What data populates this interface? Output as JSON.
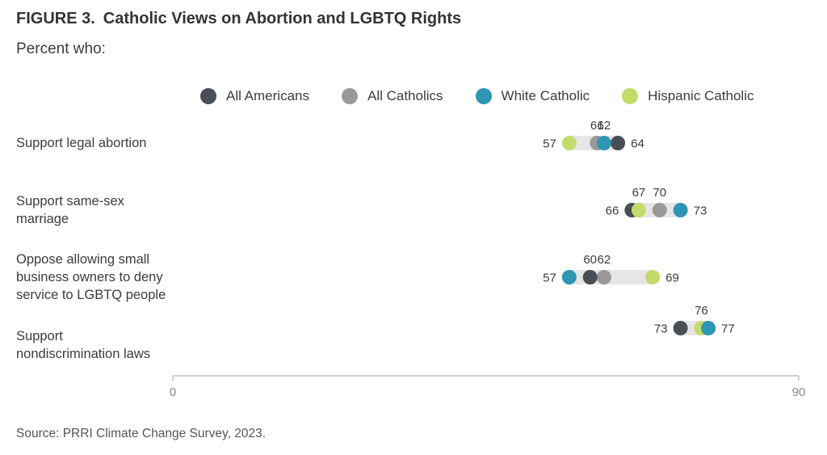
{
  "figure_label": "FIGURE 3.",
  "chart_data": {
    "type": "scatter",
    "title": "Catholic Views on Abortion and LGBTQ Rights",
    "subtitle": "Percent who:",
    "source": "Source: PRRI Climate Change Survey, 2023.",
    "xlim": [
      0,
      90
    ],
    "x_ticks": [
      "0",
      "90"
    ],
    "categories": [
      [
        "Support legal abortion"
      ],
      [
        "Support same-sex",
        "marriage"
      ],
      [
        "Oppose allowing small",
        "business owners to deny",
        "service to LGBTQ people"
      ],
      [
        "Support",
        "nondiscrimination laws"
      ]
    ],
    "series": [
      {
        "name": "All Americans",
        "color": "#4a4f55",
        "values": [
          64,
          66,
          60,
          73
        ]
      },
      {
        "name": "All Catholics",
        "color": "#999999",
        "values": [
          61,
          70,
          62,
          76
        ]
      },
      {
        "name": "White Catholic",
        "color": "#2e95b3",
        "values": [
          62,
          73,
          57,
          77
        ]
      },
      {
        "name": "Hispanic Catholic",
        "color": "#c3db6a",
        "values": [
          57,
          67,
          69,
          76
        ]
      }
    ],
    "point_labels": [
      {
        "above": [
          61,
          62
        ],
        "left": 57,
        "right": 64
      },
      {
        "above": [
          67,
          70
        ],
        "left": 66,
        "right": 73
      },
      {
        "above": [
          60,
          62
        ],
        "left": 57,
        "right": 69
      },
      {
        "above": [
          76
        ],
        "left": 73,
        "right": 77
      }
    ],
    "grid": false,
    "legend_position": "top"
  }
}
